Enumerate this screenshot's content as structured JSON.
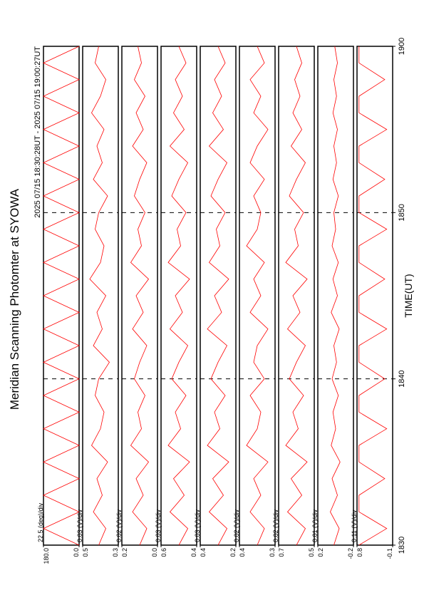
{
  "chart_data": {
    "type": "line",
    "title": "Meridian Scanning Photomter at SYOWA",
    "subtitle": "2025 07/15 18:30:28UT - 2025 07/15 19:00:27UT",
    "x_label": "TIME(UT)",
    "xlim": [
      0,
      30
    ],
    "xticks": [
      {
        "value": 0,
        "label": "1830"
      },
      {
        "value": 10,
        "label": "1840"
      },
      {
        "value": 20,
        "label": "1850"
      },
      {
        "value": 30,
        "label": "1900"
      }
    ],
    "grid": true,
    "color": "#ff0000",
    "x": [
      0,
      1,
      2,
      3,
      4,
      5,
      6,
      7,
      8,
      9,
      10,
      11,
      12,
      13,
      14,
      15,
      16,
      17,
      18,
      19,
      20,
      21,
      22,
      23,
      24,
      25,
      26,
      27,
      28,
      29,
      30
    ],
    "panels": [
      {
        "scale_label": "22.5 (deg)/div",
        "ylim": [
          0,
          180
        ],
        "yticks": [
          {
            "value": 180,
            "label": "180.0"
          },
          {
            "value": 0,
            "label": "0.0"
          }
        ],
        "values": [
          0,
          180,
          0,
          180,
          0,
          180,
          0,
          180,
          0,
          180,
          0,
          180,
          0,
          180,
          0,
          180,
          0,
          180,
          0,
          180,
          0,
          180,
          0,
          180,
          0,
          180,
          0,
          180,
          0,
          180,
          0
        ]
      },
      {
        "scale_label": "0.03 (V)/div",
        "ylim": [
          0.3,
          0.5
        ],
        "yticks": [
          0.5,
          0.3
        ],
        "values": [
          0.41,
          0.37,
          0.44,
          0.39,
          0.42,
          0.36,
          0.45,
          0.4,
          0.38,
          0.43,
          0.41,
          0.35,
          0.44,
          0.39,
          0.42,
          0.37,
          0.46,
          0.4,
          0.38,
          0.43,
          0.41,
          0.36,
          0.44,
          0.39,
          0.42,
          0.38,
          0.45,
          0.4,
          0.37,
          0.43,
          0.41
        ]
      },
      {
        "scale_label": "0.02 (V)/div",
        "ylim": [
          0,
          0.2
        ],
        "yticks": [
          0.2,
          {
            "value": 0,
            "label": "0.0"
          }
        ],
        "values": [
          0.1,
          0.06,
          0.14,
          0.08,
          0.12,
          0.05,
          0.15,
          0.09,
          0.11,
          0.07,
          0.13,
          0.1,
          0.06,
          0.14,
          0.08,
          0.12,
          0.05,
          0.15,
          0.09,
          0.11,
          0.07,
          0.13,
          0.1,
          0.06,
          0.14,
          0.08,
          0.12,
          0.07,
          0.13,
          0.09,
          0.11
        ]
      },
      {
        "scale_label": "0.03 (V)/div",
        "ylim": [
          0.4,
          0.6
        ],
        "yticks": [
          0.6,
          0.4
        ],
        "values": [
          0.5,
          0.45,
          0.55,
          0.47,
          0.53,
          0.44,
          0.56,
          0.49,
          0.52,
          0.46,
          0.54,
          0.5,
          0.45,
          0.55,
          0.48,
          0.52,
          0.44,
          0.56,
          0.49,
          0.51,
          0.46,
          0.54,
          0.5,
          0.45,
          0.55,
          0.47,
          0.53,
          0.48,
          0.52,
          0.46,
          0.5
        ]
      },
      {
        "scale_label": "0.03 (V)/div",
        "ylim": [
          0.2,
          0.4
        ],
        "yticks": [
          0.4,
          0.2
        ],
        "values": [
          0.3,
          0.25,
          0.35,
          0.27,
          0.33,
          0.24,
          0.36,
          0.29,
          0.32,
          0.26,
          0.34,
          0.3,
          0.25,
          0.36,
          0.28,
          0.32,
          0.24,
          0.35,
          0.29,
          0.31,
          0.26,
          0.34,
          0.3,
          0.25,
          0.35,
          0.27,
          0.33,
          0.28,
          0.32,
          0.26,
          0.3
        ]
      },
      {
        "scale_label": "0.02 (V)/div",
        "ylim": [
          0.3,
          0.4
        ],
        "yticks": [
          0.4,
          0.3
        ],
        "values": [
          0.35,
          0.33,
          0.37,
          0.34,
          0.36,
          0.32,
          0.38,
          0.35,
          0.34,
          0.37,
          0.33,
          0.36,
          0.35,
          0.32,
          0.37,
          0.34,
          0.36,
          0.33,
          0.38,
          0.35,
          0.34,
          0.36,
          0.33,
          0.37,
          0.35,
          0.32,
          0.36,
          0.34,
          0.37,
          0.33,
          0.35
        ]
      },
      {
        "scale_label": "0.02 (V)/div",
        "ylim": [
          0.5,
          0.7
        ],
        "yticks": [
          0.7,
          0.5
        ],
        "values": [
          0.6,
          0.55,
          0.65,
          0.57,
          0.63,
          0.54,
          0.66,
          0.59,
          0.62,
          0.56,
          0.64,
          0.6,
          0.55,
          0.65,
          0.58,
          0.62,
          0.54,
          0.66,
          0.59,
          0.61,
          0.56,
          0.64,
          0.6,
          0.55,
          0.63,
          0.57,
          0.62,
          0.58,
          0.61,
          0.57,
          0.6
        ]
      },
      {
        "scale_label": "0.01 (V)/div",
        "ylim": [
          -0.2,
          0.2
        ],
        "yticks": [
          0.2,
          -0.2
        ],
        "values": [
          0.02,
          -0.04,
          0.06,
          -0.02,
          0.04,
          -0.05,
          0.05,
          0,
          0.03,
          -0.03,
          0.04,
          -0.01,
          0.02,
          -0.04,
          0.05,
          -0.02,
          0.03,
          -0.03,
          0.04,
          0,
          0.02,
          -0.03,
          0.03,
          -0.01,
          0.02,
          -0.02,
          0.03,
          -0.01,
          0.02,
          -0.02,
          0.01
        ]
      },
      {
        "scale_label": "0.11 (V)/div",
        "ylim": [
          -0.1,
          0.8
        ],
        "yticks": [
          0.8,
          -0.1
        ],
        "values": [
          0.75,
          0.05,
          0.75,
          0.75,
          0.1,
          0.75,
          0.75,
          0.05,
          0.75,
          0.75,
          0.1,
          0.75,
          0.75,
          0.05,
          0.75,
          0.75,
          0.1,
          0.75,
          0.75,
          0.05,
          0.75,
          0.75,
          0.1,
          0.75,
          0.75,
          0.05,
          0.75,
          0.75,
          0.1,
          0.75,
          0.75
        ]
      }
    ]
  }
}
